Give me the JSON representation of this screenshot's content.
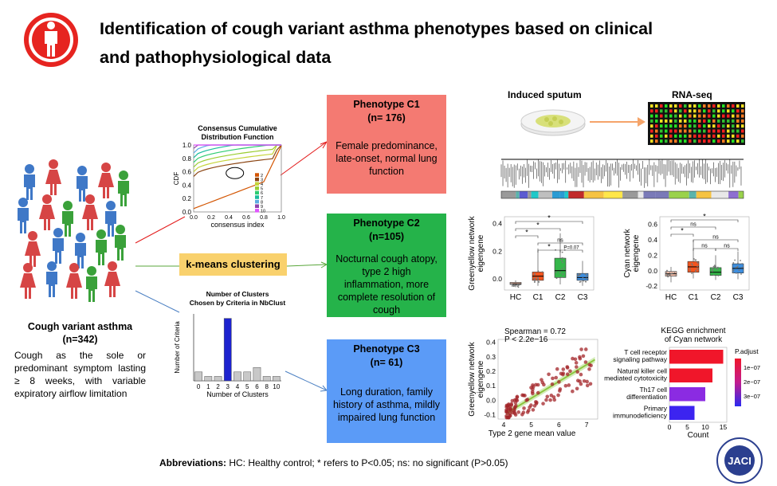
{
  "title_line1": "Identification of cough variant asthma phenotypes based on clinical",
  "title_line2": "and pathophysiological data",
  "cva": {
    "title_line1": "Cough variant asthma",
    "title_line2": "(n=342)",
    "description": "Cough as the sole or predominant symptom lasting ≥ 8 weeks, with variable expiratory airflow limitation"
  },
  "cdf_plot": {
    "title_line1": "Consensus Cumulative",
    "title_line2": "Distribution Function",
    "ylabel": "CDF",
    "xlabel": "consensus index",
    "yticks": [
      "1.0",
      "0.8",
      "0.6",
      "0.4",
      "0.2",
      "0.0"
    ],
    "xticks": [
      "0.0",
      "0.2",
      "0.4",
      "0.6",
      "0.8",
      "1.0"
    ],
    "legend": [
      "2",
      "3",
      "4",
      "5",
      "6",
      "7",
      "8",
      "9",
      "10"
    ],
    "colors": [
      "#d35400",
      "#8b4513",
      "#c5d43a",
      "#9acd32",
      "#2ecc71",
      "#1abc9c",
      "#5dade2",
      "#8e44ad",
      "#e056fd"
    ]
  },
  "kmeans_label": "k-means clustering",
  "nbclust": {
    "title_line1": "Number of Clusters",
    "title_line2": "Chosen by Criteria in NbClust",
    "ylabel": "Number of Criteria",
    "xlabel": "Number of Clusters",
    "chart_data": {
      "type": "bar",
      "categories": [
        "0",
        "1",
        "2",
        "3",
        "4",
        "5",
        "6",
        "8",
        "10"
      ],
      "values": [
        2,
        1,
        1,
        14,
        2,
        2,
        3,
        1,
        1
      ],
      "highlight": "3",
      "title": "Number of Clusters Chosen by Criteria in NbClust",
      "xlabel": "Number of Clusters",
      "ylabel": "Number of Criteria",
      "ylim": [
        0,
        15
      ]
    }
  },
  "phenotypes": [
    {
      "header": "Phenotype  C1",
      "n": "(n= 176)",
      "desc": "Female predominance, late-onset, normal lung function",
      "color": "#f47a72"
    },
    {
      "header": "Phenotype  C2",
      "n": "(n=105)",
      "desc": "Nocturnal cough atopy, type 2 high inflammation, more complete resolution of cough",
      "color": "#25b34a"
    },
    {
      "header": "Phenotype  C3",
      "n": "(n= 61)",
      "desc": "Long duration, family history of asthma, mildly impaired lung function",
      "color": "#5b9bf7"
    }
  ],
  "sputum_label": "Induced sputum",
  "rnaseq_label": "RNA-seq",
  "greenyellow_box": {
    "ylabel_line1": "Greenyellow network",
    "ylabel_line2": "eigengene",
    "categories": [
      "HC",
      "C1",
      "C2",
      "C3"
    ],
    "yticks": [
      "0.4",
      "0.2",
      "0.0"
    ],
    "annotations": [
      "*",
      "*",
      "*",
      "ns",
      "*",
      "P=0.07"
    ]
  },
  "cyan_box": {
    "ylabel_line1": "Cyan network",
    "ylabel_line2": "eigengene",
    "categories": [
      "HC",
      "C1",
      "C2",
      "C3"
    ],
    "yticks": [
      "0.6",
      "0.4",
      "0.2",
      "0.0",
      "-0.2"
    ],
    "annotations": [
      "*",
      "ns",
      "*",
      "ns",
      "ns",
      "ns"
    ]
  },
  "scatter": {
    "stat1": "Spearman = 0.72",
    "stat2": "P < 2.2e−16",
    "ylabel_line1": "Greenyellow network",
    "ylabel_line2": "eigengene",
    "xlabel": "Type 2 gene mean value",
    "xticks": [
      "4",
      "5",
      "6",
      "7"
    ],
    "yticks": [
      "0.4",
      "0.3",
      "0.2",
      "0.1",
      "0.0",
      "-0.1"
    ]
  },
  "kegg": {
    "title_line1": "KEGG enrichment",
    "title_line2": "of Cyan network",
    "xlabel": "Count",
    "xticks": [
      "0",
      "5",
      "10",
      "15"
    ],
    "legend_title": "P.adjust",
    "legend_ticks": [
      "1e−07",
      "2e−07",
      "3e−07"
    ],
    "chart_data": {
      "type": "bar",
      "orientation": "horizontal",
      "categories": [
        "T cell receptor signaling pathway",
        "Natural killer cell mediated cytotoxicity",
        "Th17 cell differentiation",
        "Primary immunodeficiency"
      ],
      "label_lines": [
        [
          "T cell receptor",
          "signaling pathway"
        ],
        [
          "Natural killer cell",
          "mediated cytotoxicity"
        ],
        [
          "Th17 cell",
          "differentiation"
        ],
        [
          "Primary",
          "immunodeficiency"
        ]
      ],
      "values": [
        15,
        12,
        10,
        7
      ],
      "colors": [
        "#f0162a",
        "#f0162a",
        "#8b2be2",
        "#3c24f0"
      ],
      "xlabel": "Count",
      "xlim": [
        0,
        16
      ]
    }
  },
  "footer": {
    "label": "Abbreviations:",
    "text": " HC: Healthy control;  * refers to P<0.05;  ns: no significant (P>0.05)"
  },
  "logo_text": "JACI"
}
